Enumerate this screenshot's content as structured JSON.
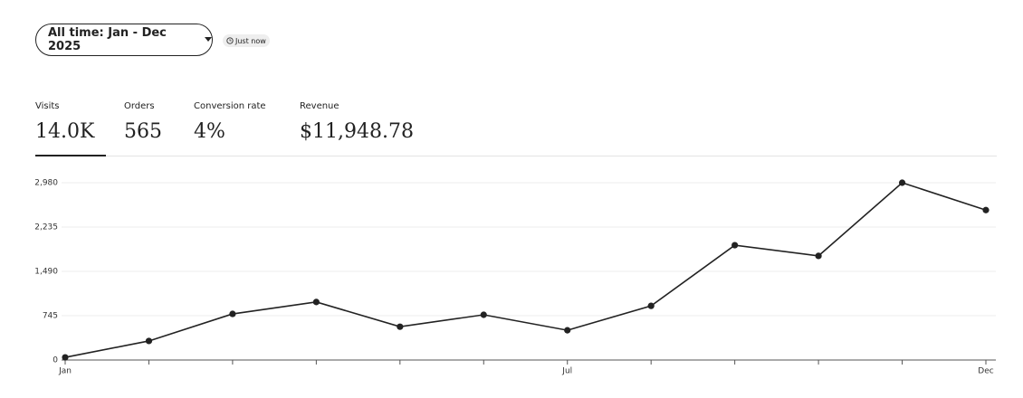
{
  "filter": {
    "label": "All time: Jan - Dec 2025"
  },
  "status": "Just now",
  "metrics": [
    {
      "label": "Visits",
      "value": "14.0K"
    },
    {
      "label": "Orders",
      "value": "565"
    },
    {
      "label": "Conversion rate",
      "value": "4%"
    },
    {
      "label": "Revenue",
      "value": "$11,948.78"
    }
  ],
  "chart_data": {
    "type": "line",
    "categories": [
      "Jan",
      null,
      null,
      null,
      null,
      null,
      "Jul",
      null,
      null,
      null,
      null,
      "Dec"
    ],
    "values": [
      45,
      320,
      775,
      975,
      560,
      760,
      500,
      910,
      1930,
      1750,
      2980,
      2520
    ],
    "color": "#222222",
    "ylim": [
      0,
      2980
    ],
    "yticks": [
      0,
      745,
      {
        "value": 1490,
        "label": "1,490"
      },
      {
        "value": 2235,
        "label": "2,235"
      },
      {
        "value": 2980,
        "label": "2,980"
      }
    ],
    "grid": true
  }
}
